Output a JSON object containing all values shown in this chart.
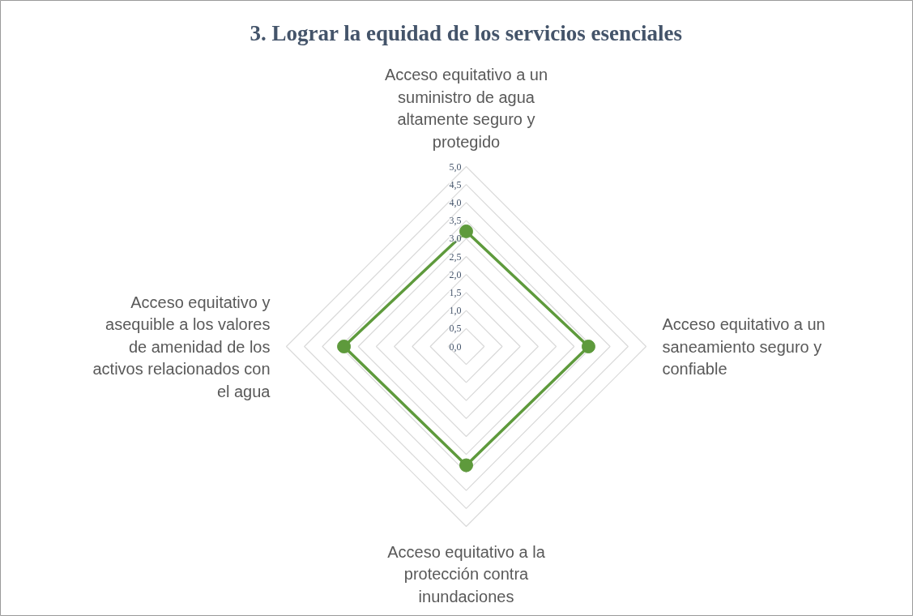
{
  "chart_data": {
    "type": "radar",
    "title": "3. Lograr la equidad de los servicios esenciales",
    "categories": [
      "Acceso equitativo a un suministro de agua altamente seguro y protegido",
      "Acceso equitativo a un saneamiento seguro y confiable",
      "Acceso equitativo a la protección contra inundaciones",
      "Acceso equitativo y asequible a los valores de amenidad de los activos relacionados con el agua"
    ],
    "series": [
      {
        "color": "#5e9a3c",
        "values": [
          3.2,
          3.4,
          3.3,
          3.4
        ]
      }
    ],
    "ylim": [
      0,
      5
    ],
    "yticks": [
      {
        "value": 0,
        "label": "0,0"
      },
      {
        "value": 0.5,
        "label": "0,5"
      },
      {
        "value": 1,
        "label": "1,0"
      },
      {
        "value": 1.5,
        "label": "1,5"
      },
      {
        "value": 2,
        "label": "2,0"
      },
      {
        "value": 2.5,
        "label": "2,5"
      },
      {
        "value": 3,
        "label": "3,0"
      },
      {
        "value": 3.5,
        "label": "3,5"
      },
      {
        "value": 4,
        "label": "4,0"
      },
      {
        "value": 4.5,
        "label": "4,5"
      },
      {
        "value": 5,
        "label": "5,0"
      }
    ],
    "grid": true,
    "marker": "circle",
    "line_style": "solid"
  }
}
